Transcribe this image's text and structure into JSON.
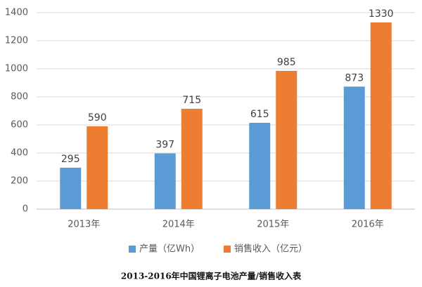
{
  "chart_data": {
    "type": "bar",
    "categories": [
      "2013年",
      "2014年",
      "2015年",
      "2016年"
    ],
    "series": [
      {
        "name": "产量（亿Wh）",
        "color": "#5b9bd5",
        "values": [
          295,
          397,
          615,
          873
        ]
      },
      {
        "name": "销售收入（亿元）",
        "color": "#ed7d31",
        "values": [
          590,
          715,
          985,
          1330
        ]
      }
    ],
    "ylim": [
      0,
      1400
    ],
    "yticks": [
      0,
      200,
      400,
      600,
      800,
      1000,
      1200,
      1400
    ],
    "grid": true,
    "legend": "bottom",
    "caption": "2013-2016年中国锂离子电池产量/销售收入表"
  }
}
